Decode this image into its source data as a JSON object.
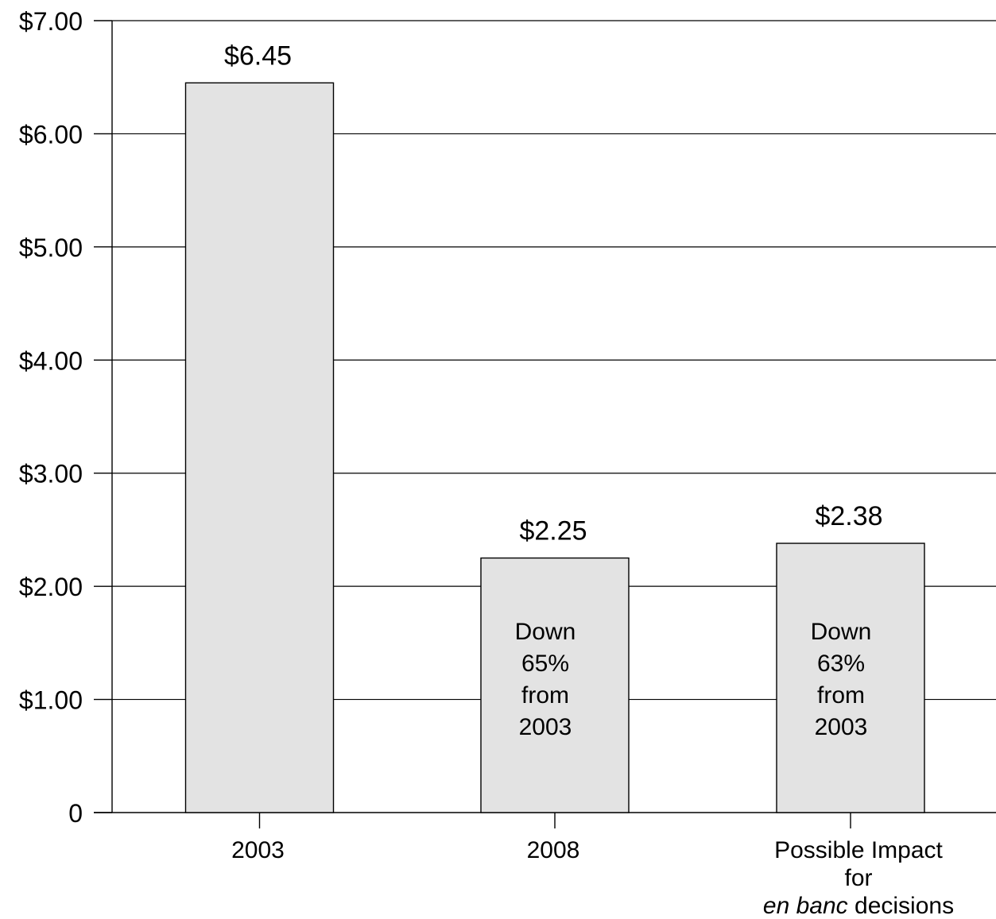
{
  "chart_data": {
    "type": "bar",
    "title": "",
    "xlabel": "",
    "ylabel": "",
    "ylim": [
      0,
      7
    ],
    "grid": true,
    "y_ticks": [
      {
        "value": 0,
        "label": "0"
      },
      {
        "value": 1,
        "label": "$1.00"
      },
      {
        "value": 2,
        "label": "$2.00"
      },
      {
        "value": 3,
        "label": "$3.00"
      },
      {
        "value": 4,
        "label": "$4.00"
      },
      {
        "value": 5,
        "label": "$5.00"
      },
      {
        "value": 6,
        "label": "$6.00"
      },
      {
        "value": 7,
        "label": "$7.00"
      }
    ],
    "categories": [
      "2003",
      "2008",
      "Possible Impact for en banc decisions"
    ],
    "category_label_lines": [
      [
        [
          {
            "text": "2003",
            "italic": false
          }
        ]
      ],
      [
        [
          {
            "text": "2008",
            "italic": false
          }
        ]
      ],
      [
        [
          {
            "text": "Possible Impact",
            "italic": false
          }
        ],
        [
          {
            "text": "for",
            "italic": false
          }
        ],
        [
          {
            "text": "en banc",
            "italic": true
          },
          {
            "text": " decisions",
            "italic": false
          }
        ]
      ]
    ],
    "values": [
      6.45,
      2.25,
      2.38
    ],
    "data_labels": [
      "$6.45",
      "$2.25",
      "$2.38"
    ],
    "annotations": [
      [],
      [
        "Down",
        "65%",
        "from",
        "2003"
      ],
      [
        "Down",
        "63%",
        "from",
        "2003"
      ]
    ],
    "bar_color": "#e3e3e3",
    "bar_stroke": "#000000",
    "grid_color": "#000000"
  }
}
